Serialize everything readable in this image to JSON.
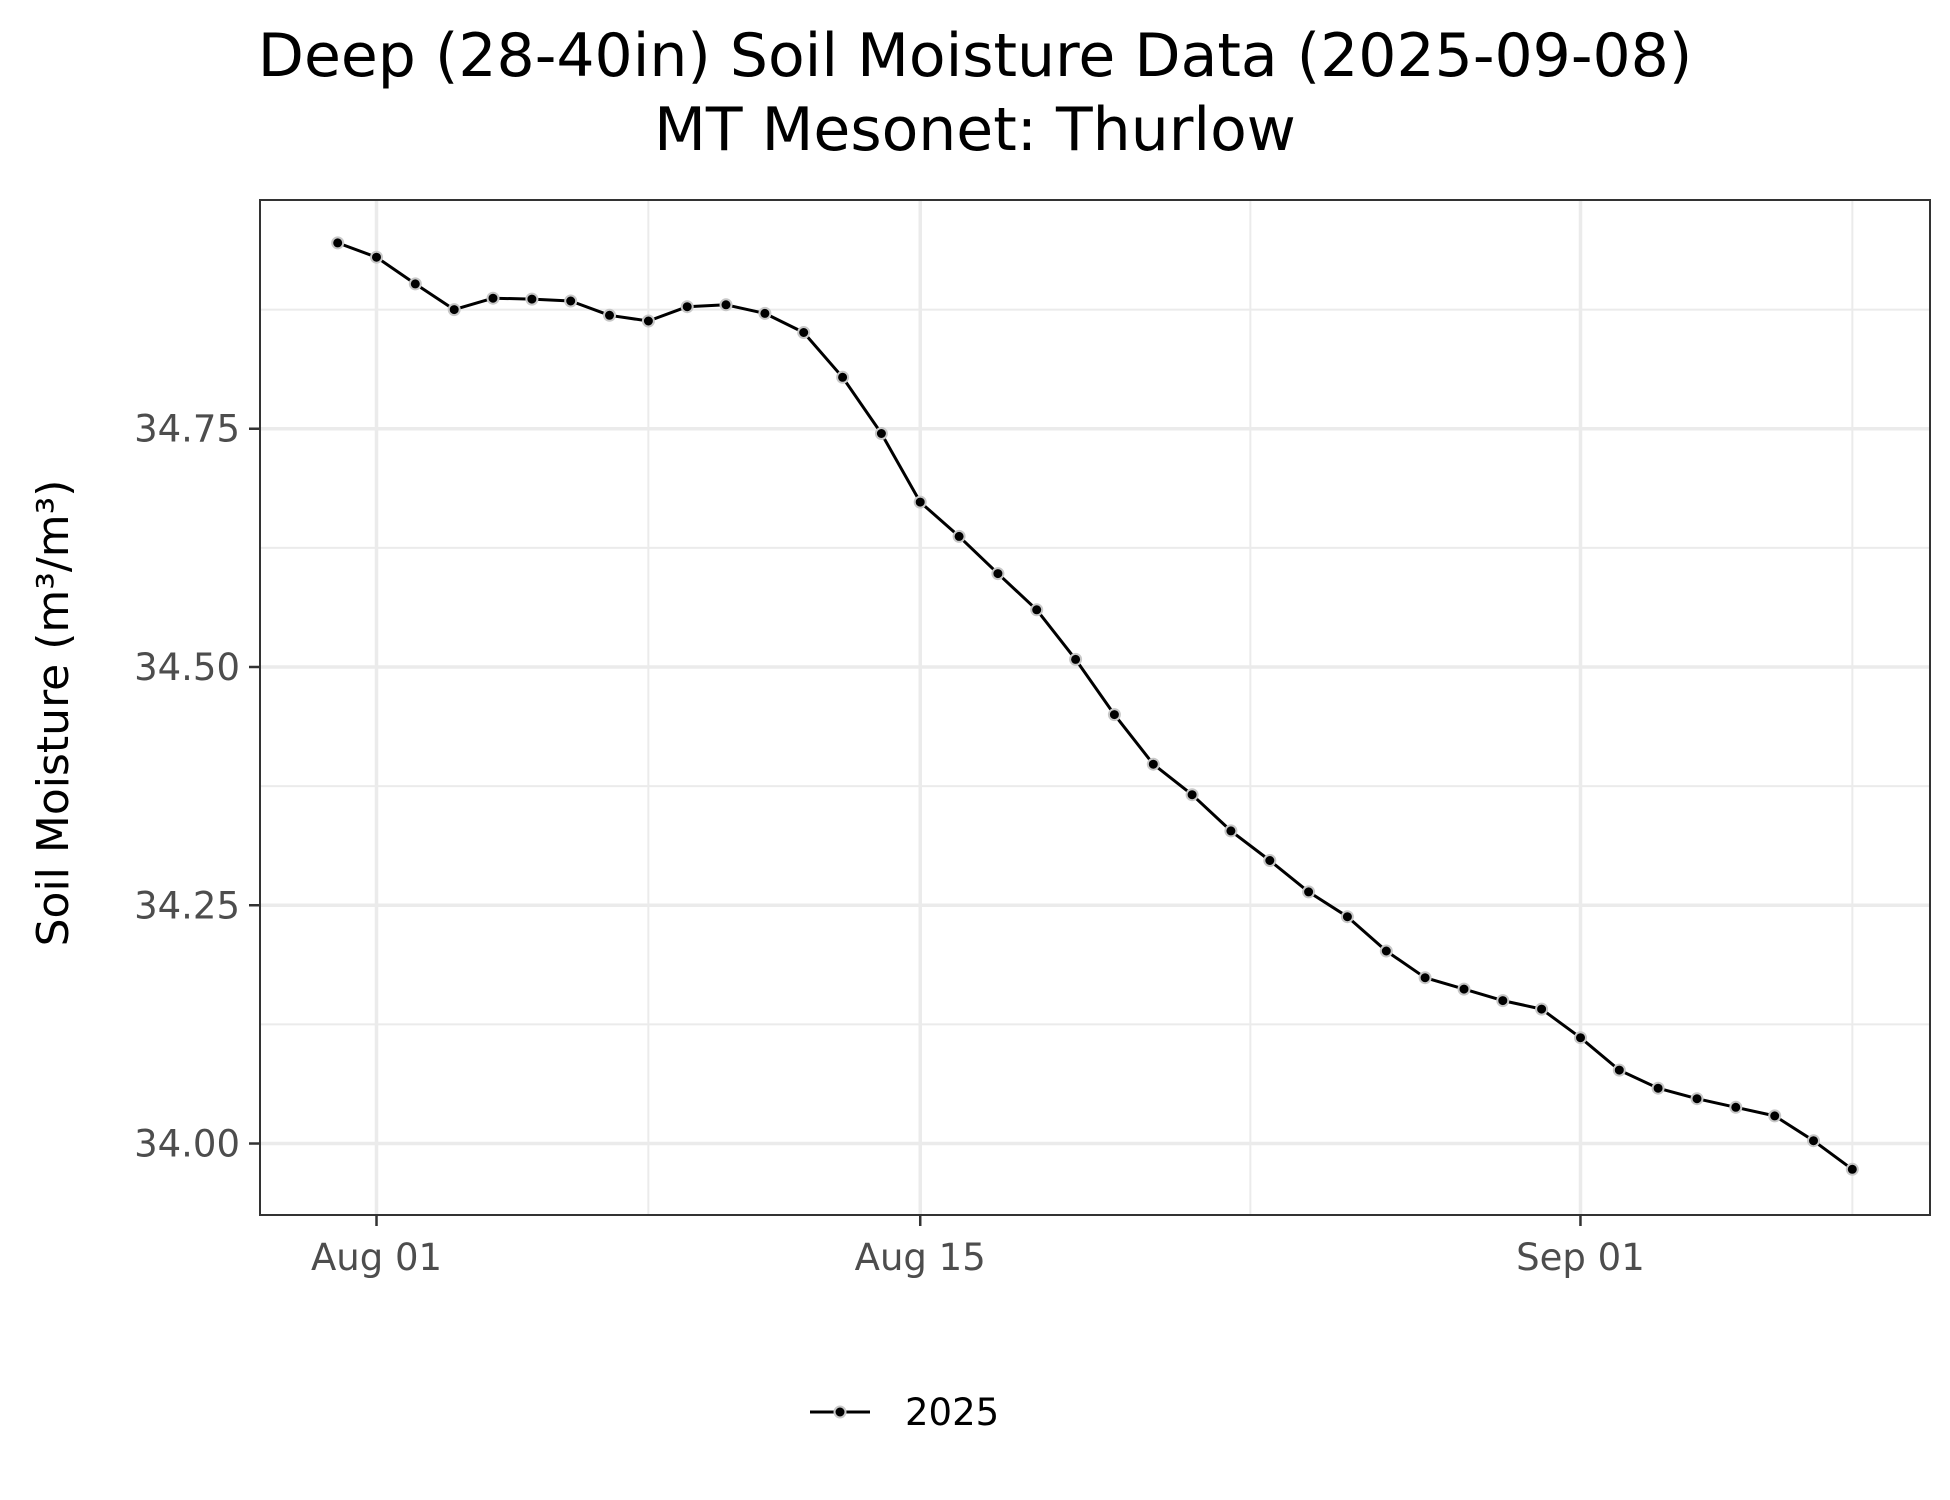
{
  "chart_data": {
    "type": "line",
    "title": "Deep (28-40in) Soil Moisture Data (2025-09-08)",
    "subtitle": "MT Mesonet: Thurlow",
    "ylabel": "Soil Moisture (m³/m³)",
    "xlabel": "",
    "x_ticks": [
      {
        "date": "2025-08-01",
        "label": "Aug 01"
      },
      {
        "date": "2025-08-15",
        "label": "Aug 15"
      },
      {
        "date": "2025-09-01",
        "label": "Sep 01"
      }
    ],
    "y_ticks": [
      {
        "value": 34.0,
        "label": "34.00"
      },
      {
        "value": 34.25,
        "label": "34.25"
      },
      {
        "value": 34.5,
        "label": "34.50"
      },
      {
        "value": 34.75,
        "label": "34.75"
      }
    ],
    "xlim": [
      "2025-07-29",
      "2025-09-10"
    ],
    "ylim": [
      33.925,
      34.99
    ],
    "grid": true,
    "legend_position": "bottom",
    "colors": {
      "line": "#000000",
      "point_fill": "#000000",
      "point_outline": "#c8c8c8",
      "grid": "#ebebeb",
      "panel_border": "#333333"
    },
    "series": [
      {
        "name": "2025",
        "x": [
          "2025-07-31",
          "2025-08-01",
          "2025-08-02",
          "2025-08-03",
          "2025-08-04",
          "2025-08-05",
          "2025-08-06",
          "2025-08-07",
          "2025-08-08",
          "2025-08-09",
          "2025-08-10",
          "2025-08-11",
          "2025-08-12",
          "2025-08-13",
          "2025-08-14",
          "2025-08-15",
          "2025-08-16",
          "2025-08-17",
          "2025-08-18",
          "2025-08-19",
          "2025-08-20",
          "2025-08-21",
          "2025-08-22",
          "2025-08-23",
          "2025-08-24",
          "2025-08-25",
          "2025-08-26",
          "2025-08-27",
          "2025-08-28",
          "2025-08-29",
          "2025-08-30",
          "2025-08-31",
          "2025-09-01",
          "2025-09-02",
          "2025-09-03",
          "2025-09-04",
          "2025-09-05",
          "2025-09-06",
          "2025-09-07",
          "2025-09-08"
        ],
        "values": [
          34.945,
          34.93,
          34.902,
          34.875,
          34.887,
          34.886,
          34.884,
          34.869,
          34.863,
          34.878,
          34.88,
          34.871,
          34.851,
          34.804,
          34.745,
          34.673,
          34.637,
          34.598,
          34.56,
          34.508,
          34.45,
          34.398,
          34.366,
          34.328,
          34.297,
          34.264,
          34.238,
          34.202,
          34.174,
          34.162,
          34.15,
          34.141,
          34.111,
          34.077,
          34.058,
          34.047,
          34.038,
          34.029,
          34.003,
          33.973
        ]
      }
    ]
  }
}
